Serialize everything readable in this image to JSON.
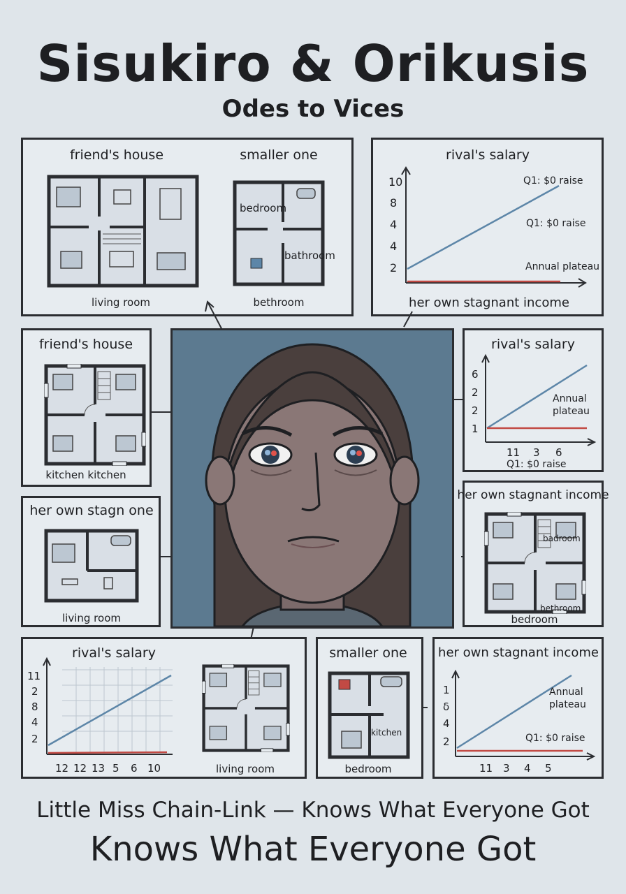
{
  "title": "Sisukiro & Orikusis",
  "subtitle": "Odes to Vices",
  "footer": {
    "line1": "Little Miss Chain-Link — Knows What Everyone Got",
    "line2": "Knows What Everyone Got"
  },
  "panels": {
    "top_left": {
      "left_caption": "friend's house",
      "right_caption": "smaller one",
      "left_room": "living room",
      "right_room": "bethroom",
      "plan_room_1": "bedroom",
      "plan_room_2": "bathroom"
    },
    "top_right": {
      "caption": "rival's salary",
      "y_ticks": [
        "10",
        "8",
        "4",
        "4",
        "2"
      ],
      "annotation_1": "Q1: $0 raise",
      "annotation_2": "Q1: $0 raise",
      "annotation_3": "Annual plateau",
      "bottom_caption": "her own stagnant income"
    },
    "mid_left": {
      "caption": "friend's house",
      "room": "kitchen kitchen"
    },
    "mid_right": {
      "caption": "rival's salary",
      "y_ticks": [
        "6",
        "2",
        "2",
        "1"
      ],
      "x_ticks": [
        "11",
        "3",
        "6"
      ],
      "annotation_1": "Annual",
      "annotation_2": "plateau",
      "annotation_3": "Q1: $0 raise"
    },
    "left_lower": {
      "caption": "her own stagn one",
      "room": "living room"
    },
    "right_lower": {
      "caption": "her own stagnant income",
      "room_1": "badroom",
      "room_2": "bethroom",
      "room_3": "bedroom"
    },
    "bottom_left": {
      "caption": "rival's salary",
      "y_ticks": [
        "11",
        "2",
        "8",
        "4",
        "2"
      ],
      "x_ticks": [
        "12",
        "12",
        "13",
        "5",
        "6",
        "10"
      ],
      "room": "living room"
    },
    "bottom_mid": {
      "caption": "smaller one",
      "room_1": "kitchen",
      "room_2": "bedroom"
    },
    "bottom_right": {
      "caption": "her own stagnant income",
      "y_ticks": [
        "1",
        "δ",
        "4",
        "2"
      ],
      "x_ticks": [
        "11",
        "3",
        "4",
        "5"
      ],
      "annotation_1": "Annual",
      "annotation_2": "plateau",
      "annotation_3": "Q1: $0 raise"
    }
  },
  "colors": {
    "background": "#dfe5ea",
    "panel": "#e7ecf0",
    "rival_line": "#5d86a8",
    "income_line": "#c24a44",
    "portrait_bg": "#5c7a90"
  }
}
